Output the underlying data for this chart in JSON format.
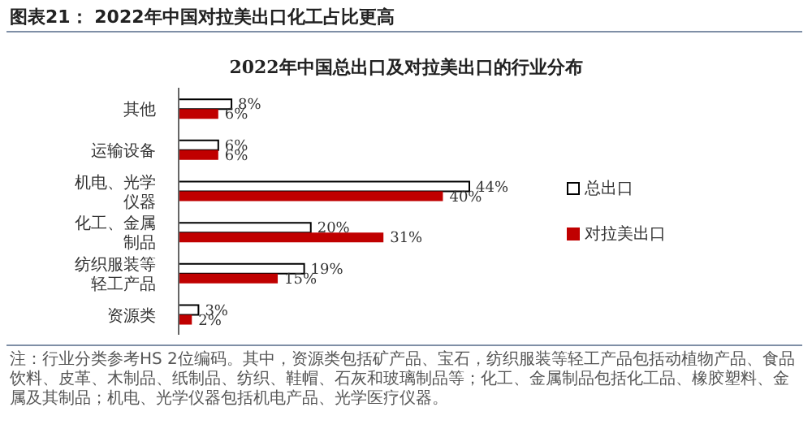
{
  "chart_data": {
    "type": "bar",
    "orientation": "horizontal",
    "title": "2022年中国总出口及对拉美出口的行业分布",
    "subtitle": "图表21： 2022年中国对拉美出口化工占比更高",
    "categories": [
      "其他",
      "运输设备",
      "机电、光学仪器",
      "化工、金属制品",
      "纺织服装等轻工产品",
      "资源类"
    ],
    "series": [
      {
        "name": "总出口",
        "color": "#ffffff",
        "values": [
          8,
          6,
          44,
          20,
          19,
          3
        ],
        "value_labels": [
          "8%",
          "6%",
          "44%",
          "20%",
          "19%",
          "3%"
        ]
      },
      {
        "name": "对拉美出口",
        "color": "#c00000",
        "values": [
          6,
          6,
          40,
          31,
          15,
          2
        ],
        "value_labels": [
          "6%",
          "6%",
          "40%",
          "31%",
          "15%",
          "2%"
        ]
      }
    ],
    "legend": "right",
    "tick_labels": "y",
    "annotations": [
      "注：行业分类参考HS 2位编码。其中，资源类包括矿产品、宝石，纺织服装等轻工产品包括动植物产品、食品饮料、皮革、木制品、纸制品、纺织、鞋帽、石灰和玻璃制品等；化工、金属制品包括化工品、橡胶塑料、金属及其制品；机电、光学仪器包括机电产品、光学医疗仪器。"
    ]
  }
}
